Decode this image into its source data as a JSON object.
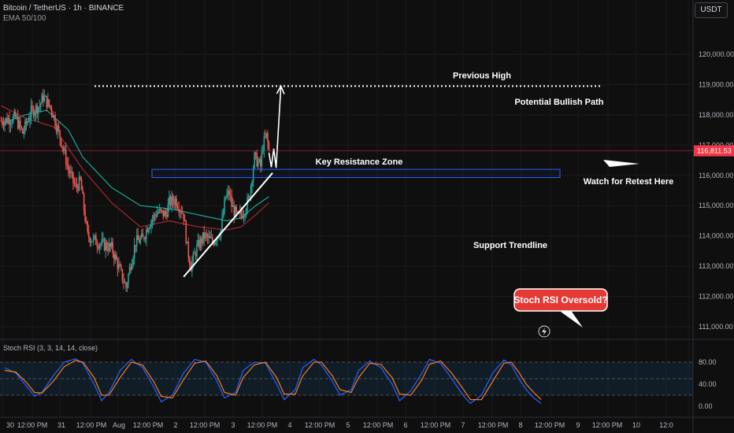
{
  "header": {
    "symbol": "Bitcoin / TetherUS · 1h · BINANCE",
    "indicator": "EMA 50/100",
    "quote_currency": "USDT"
  },
  "colors": {
    "background": "#0f0f0f",
    "candle_up": "#26a69a",
    "candle_down": "#ef5350",
    "ema50": "#1fb8a6",
    "ema100": "#b32a31",
    "resistance_box": "#2962ff",
    "stoch_k": "#2962ff",
    "stoch_d": "#f57c1f",
    "price_tag": "#f23645",
    "callout": "#e53935"
  },
  "price_axis": {
    "ticks": [
      "120,000.00",
      "119,000.00",
      "118,000.00",
      "117,000.00",
      "116,000.00",
      "115,000.00",
      "114,000.00",
      "113,000.00",
      "112,000.00",
      "111,000.00"
    ],
    "current_price": "116,811.53"
  },
  "time_axis": {
    "ticks": [
      "30",
      "12:00 PM",
      "31",
      "12:00 PM",
      "Aug",
      "12:00 PM",
      "2",
      "12:00 PM",
      "3",
      "12:00 PM",
      "4",
      "12:00 PM",
      "5",
      "12:00 PM",
      "6",
      "12:00 PM",
      "7",
      "12:00 PM",
      "8",
      "12:00 PM",
      "9",
      "12:00 PM",
      "10",
      "12:0"
    ]
  },
  "annotations": {
    "previous_high": "Previous High",
    "bullish_path": "Potential Bullish Path",
    "resistance_zone": "Key Resistance Zone",
    "retest": "Watch for Retest Here",
    "support": "Support Trendline",
    "stoch_callout": "Stoch RSI Oversold?"
  },
  "stoch_panel": {
    "label": "Stoch RSI (3, 3, 14, 14, close)",
    "ticks": [
      "80.00",
      "40.00",
      "0.00"
    ]
  },
  "chart_data": {
    "type": "candlestick",
    "symbol": "BTC/USDT",
    "timeframe": "1h",
    "ylim": [
      110500,
      121300
    ],
    "levels": {
      "previous_high": 118950,
      "resistance_zone": [
        115930,
        116200
      ],
      "current_price": 116811.53
    },
    "support_trendline": {
      "from": [
        "Aug 5 00:00",
        112650
      ],
      "to": [
        "Aug 8 02:00",
        116080
      ]
    },
    "projected_path": [
      [
        "Aug 7 23:00",
        116750
      ],
      [
        "Aug 8 01:00",
        116270
      ],
      [
        "Aug 8 03:00",
        116880
      ],
      [
        "Aug 8 05:00",
        116250
      ],
      [
        "Aug 8 09:00",
        118950
      ]
    ],
    "price_path": [
      [
        "Jul 29 16:00",
        117800
      ],
      [
        "Jul 30 04:00",
        117900
      ],
      [
        "Jul 30 10:00",
        117400
      ],
      [
        "Jul 30 17:00",
        118100
      ],
      [
        "Jul 31 00:00",
        118300
      ],
      [
        "Jul 31 03:00",
        118600
      ],
      [
        "Jul 31 10:00",
        118200
      ],
      [
        "Jul 31 19:00",
        117000
      ],
      [
        "Aug 1 00:00",
        116200
      ],
      [
        "Aug 1 06:00",
        115600
      ],
      [
        "Aug 1 10:00",
        115800
      ],
      [
        "Aug 1 16:00",
        114000
      ],
      [
        "Aug 2 00:00",
        113800
      ],
      [
        "Aug 2 12:00",
        113600
      ],
      [
        "Aug 3 00:00",
        112300
      ],
      [
        "Aug 3 04:00",
        113100
      ],
      [
        "Aug 3 08:00",
        113800
      ],
      [
        "Aug 3 14:00",
        113900
      ],
      [
        "Aug 3 19:00",
        114400
      ],
      [
        "Aug 4 02:00",
        114800
      ],
      [
        "Aug 4 09:00",
        114700
      ],
      [
        "Aug 4 12:00",
        115100
      ],
      [
        "Aug 4 17:00",
        115200
      ],
      [
        "Aug 4 23:00",
        114800
      ],
      [
        "Aug 5 00:00",
        114700
      ],
      [
        "Aug 5 03:00",
        113600
      ],
      [
        "Aug 5 06:00",
        113000
      ],
      [
        "Aug 5 11:00",
        113600
      ],
      [
        "Aug 5 17:00",
        114000
      ],
      [
        "Aug 6 00:00",
        113800
      ],
      [
        "Aug 6 07:00",
        114200
      ],
      [
        "Aug 6 11:00",
        115300
      ],
      [
        "Aug 6 14:00",
        115400
      ],
      [
        "Aug 6 16:00",
        115000
      ],
      [
        "Aug 6 21:00",
        114600
      ],
      [
        "Aug 7 02:00",
        114800
      ],
      [
        "Aug 7 06:00",
        115200
      ],
      [
        "Aug 7 08:00",
        115700
      ],
      [
        "Aug 7 11:00",
        116600
      ],
      [
        "Aug 7 16:00",
        116300
      ],
      [
        "Aug 7 18:00",
        117000
      ],
      [
        "Aug 7 20:00",
        117200
      ],
      [
        "Aug 7 21:00",
        117300
      ],
      [
        "Aug 7 23:00",
        116800
      ]
    ],
    "series": [
      {
        "name": "EMA 50",
        "values": [
          [
            "Jul 29 16:00",
            117700
          ],
          [
            "Jul 30 12:00",
            118000
          ],
          [
            "Jul 31 06:00",
            118150
          ],
          [
            "Aug 1 00:00",
            117500
          ],
          [
            "Aug 1 12:00",
            116600
          ],
          [
            "Aug 2 12:00",
            115600
          ],
          [
            "Aug 3 12:00",
            115000
          ],
          [
            "Aug 4 12:00",
            114900
          ],
          [
            "Aug 5 12:00",
            114700
          ],
          [
            "Aug 6 12:00",
            114500
          ],
          [
            "Aug 7 00:00",
            114600
          ],
          [
            "Aug 7 12:00",
            115000
          ],
          [
            "Aug 7 23:00",
            115300
          ]
        ]
      },
      {
        "name": "EMA 100",
        "values": [
          [
            "Jul 29 16:00",
            118300
          ],
          [
            "Jul 30 12:00",
            117900
          ],
          [
            "Jul 31 12:00",
            117600
          ],
          [
            "Aug 1 12:00",
            116200
          ],
          [
            "Aug 2 12:00",
            115100
          ],
          [
            "Aug 3 12:00",
            114300
          ],
          [
            "Aug 4 12:00",
            114500
          ],
          [
            "Aug 5 12:00",
            114300
          ],
          [
            "Aug 6 12:00",
            114200
          ],
          [
            "Aug 7 00:00",
            114300
          ],
          [
            "Aug 7 12:00",
            114700
          ],
          [
            "Aug 7 23:00",
            115100
          ]
        ]
      }
    ],
    "stoch_rsi": {
      "ylim": [
        -10,
        105
      ],
      "levels": [
        80,
        50,
        20
      ],
      "k": [
        [
          0,
          70
        ],
        [
          6,
          60
        ],
        [
          12,
          35
        ],
        [
          16,
          18
        ],
        [
          20,
          25
        ],
        [
          26,
          55
        ],
        [
          32,
          80
        ],
        [
          38,
          86
        ],
        [
          42,
          78
        ],
        [
          48,
          40
        ],
        [
          52,
          10
        ],
        [
          56,
          25
        ],
        [
          62,
          65
        ],
        [
          68,
          85
        ],
        [
          74,
          70
        ],
        [
          80,
          35
        ],
        [
          84,
          8
        ],
        [
          90,
          20
        ],
        [
          96,
          60
        ],
        [
          102,
          85
        ],
        [
          108,
          80
        ],
        [
          114,
          45
        ],
        [
          118,
          15
        ],
        [
          124,
          25
        ],
        [
          128,
          65
        ],
        [
          134,
          80
        ],
        [
          140,
          78
        ],
        [
          146,
          40
        ],
        [
          150,
          12
        ],
        [
          156,
          30
        ],
        [
          160,
          70
        ],
        [
          166,
          85
        ],
        [
          170,
          75
        ],
        [
          176,
          45
        ],
        [
          180,
          20
        ],
        [
          186,
          30
        ],
        [
          190,
          65
        ],
        [
          196,
          82
        ],
        [
          202,
          70
        ],
        [
          208,
          40
        ],
        [
          212,
          10
        ],
        [
          218,
          28
        ],
        [
          224,
          60
        ],
        [
          228,
          85
        ],
        [
          234,
          78
        ],
        [
          240,
          50
        ],
        [
          246,
          20
        ],
        [
          250,
          5
        ],
        [
          256,
          20
        ],
        [
          262,
          60
        ],
        [
          268,
          84
        ],
        [
          272,
          75
        ],
        [
          276,
          50
        ],
        [
          280,
          30
        ],
        [
          284,
          15
        ],
        [
          288,
          5
        ]
      ],
      "d": [
        [
          0,
          65
        ],
        [
          6,
          62
        ],
        [
          12,
          42
        ],
        [
          16,
          25
        ],
        [
          20,
          24
        ],
        [
          26,
          45
        ],
        [
          32,
          72
        ],
        [
          38,
          83
        ],
        [
          42,
          80
        ],
        [
          48,
          52
        ],
        [
          52,
          20
        ],
        [
          56,
          20
        ],
        [
          62,
          52
        ],
        [
          68,
          80
        ],
        [
          74,
          75
        ],
        [
          80,
          45
        ],
        [
          84,
          18
        ],
        [
          90,
          15
        ],
        [
          96,
          48
        ],
        [
          102,
          78
        ],
        [
          108,
          82
        ],
        [
          114,
          55
        ],
        [
          118,
          25
        ],
        [
          124,
          20
        ],
        [
          128,
          52
        ],
        [
          134,
          75
        ],
        [
          140,
          80
        ],
        [
          146,
          52
        ],
        [
          150,
          22
        ],
        [
          156,
          22
        ],
        [
          160,
          55
        ],
        [
          166,
          80
        ],
        [
          170,
          80
        ],
        [
          176,
          55
        ],
        [
          180,
          30
        ],
        [
          186,
          25
        ],
        [
          190,
          52
        ],
        [
          196,
          78
        ],
        [
          202,
          76
        ],
        [
          208,
          52
        ],
        [
          212,
          22
        ],
        [
          218,
          20
        ],
        [
          224,
          48
        ],
        [
          228,
          76
        ],
        [
          234,
          82
        ],
        [
          240,
          60
        ],
        [
          246,
          32
        ],
        [
          250,
          12
        ],
        [
          256,
          12
        ],
        [
          262,
          45
        ],
        [
          268,
          78
        ],
        [
          272,
          80
        ],
        [
          276,
          62
        ],
        [
          280,
          40
        ],
        [
          284,
          25
        ],
        [
          288,
          12
        ]
      ]
    }
  }
}
